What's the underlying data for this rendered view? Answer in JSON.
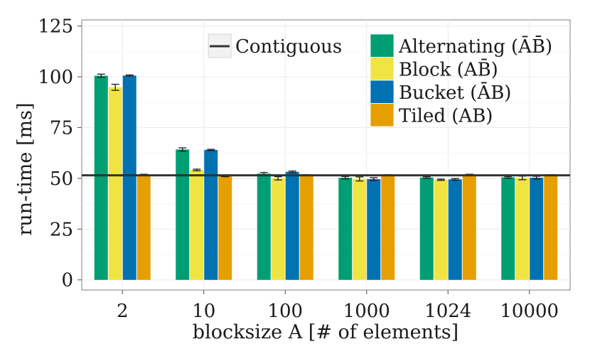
{
  "chart_data": {
    "type": "bar",
    "title": "",
    "xlabel": "blocksize A [# of elements]",
    "ylabel": "run-time [ms]",
    "ylim": [
      -5,
      128
    ],
    "yticks": [
      0,
      25,
      50,
      75,
      100,
      125
    ],
    "grid": true,
    "legend_position": "top-right",
    "categories": [
      "2",
      "10",
      "100",
      "1000",
      "1024",
      "10000"
    ],
    "series": [
      {
        "name": "Alternating (ĀB̄)",
        "color": "#009e73",
        "values": [
          100.5,
          64.2,
          52.3,
          50.3,
          50.4,
          50.5
        ],
        "errors": [
          0.8,
          0.8,
          0.6,
          0.6,
          0.4,
          0.4
        ]
      },
      {
        "name": "Block (AB̄)",
        "color": "#f0e442",
        "values": [
          94.8,
          54.1,
          50.0,
          49.7,
          49.3,
          50.2
        ],
        "errors": [
          1.5,
          0.4,
          0.8,
          1.0,
          0.3,
          0.9
        ]
      },
      {
        "name": "Bucket (ĀB)",
        "color": "#0072b2",
        "values": [
          100.6,
          64.0,
          53.2,
          49.6,
          49.5,
          50.3
        ],
        "errors": [
          0.3,
          0.3,
          0.4,
          0.7,
          0.4,
          0.7
        ]
      },
      {
        "name": "Tiled (AB)",
        "color": "#e69f00",
        "values": [
          51.8,
          51.0,
          51.6,
          51.6,
          51.8,
          51.6
        ],
        "errors": [
          0.2,
          0.2,
          0.2,
          0.2,
          0.2,
          0.2
        ]
      }
    ],
    "reference_line": {
      "name": "Contiguous",
      "value": 51.5,
      "color": "#333333"
    }
  }
}
